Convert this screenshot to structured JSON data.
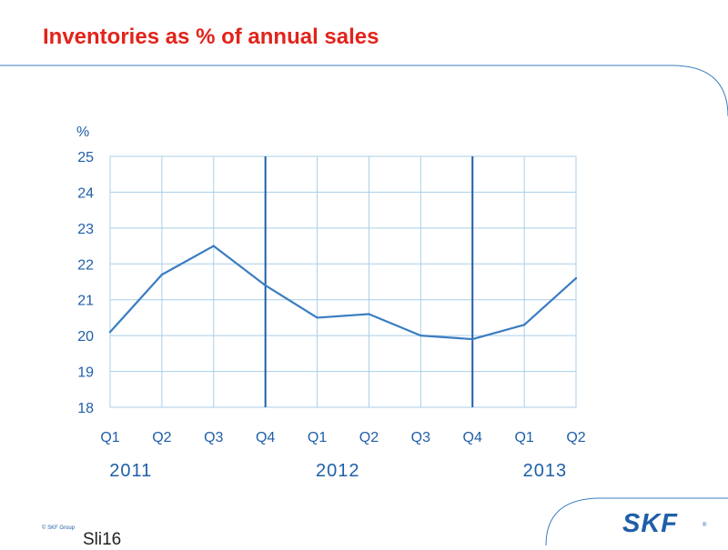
{
  "slide": {
    "title": "Inventories as % of annual sales",
    "copyright": "© SKF Group",
    "slide_number": "Sli16",
    "logo_text": "SKF",
    "logo_mark": "®"
  },
  "colors": {
    "title": "#e2231a",
    "line": "#3a7dc1",
    "grid": "#a9cfe8",
    "divider": "#1f5fa8",
    "text": "#1f5fa8",
    "logo": "#1f5fa8"
  },
  "chart_data": {
    "type": "line",
    "ylabel": "%",
    "ylim": [
      18,
      25
    ],
    "yticks": [
      18,
      19,
      20,
      21,
      22,
      23,
      24,
      25
    ],
    "categories": [
      "Q1",
      "Q2",
      "Q3",
      "Q4",
      "Q1",
      "Q2",
      "Q3",
      "Q4",
      "Q1",
      "Q2"
    ],
    "years": [
      {
        "label": "2011",
        "center_index": 0.4
      },
      {
        "label": "2012",
        "center_index": 4.4
      },
      {
        "label": "2013",
        "center_index": 8.4
      }
    ],
    "dividers_after_index": [
      3,
      7
    ],
    "series": [
      {
        "values": [
          20.1,
          21.7,
          22.5,
          21.4,
          20.5,
          20.6,
          20.0,
          19.9,
          20.3,
          21.6
        ]
      }
    ],
    "grid": true
  }
}
